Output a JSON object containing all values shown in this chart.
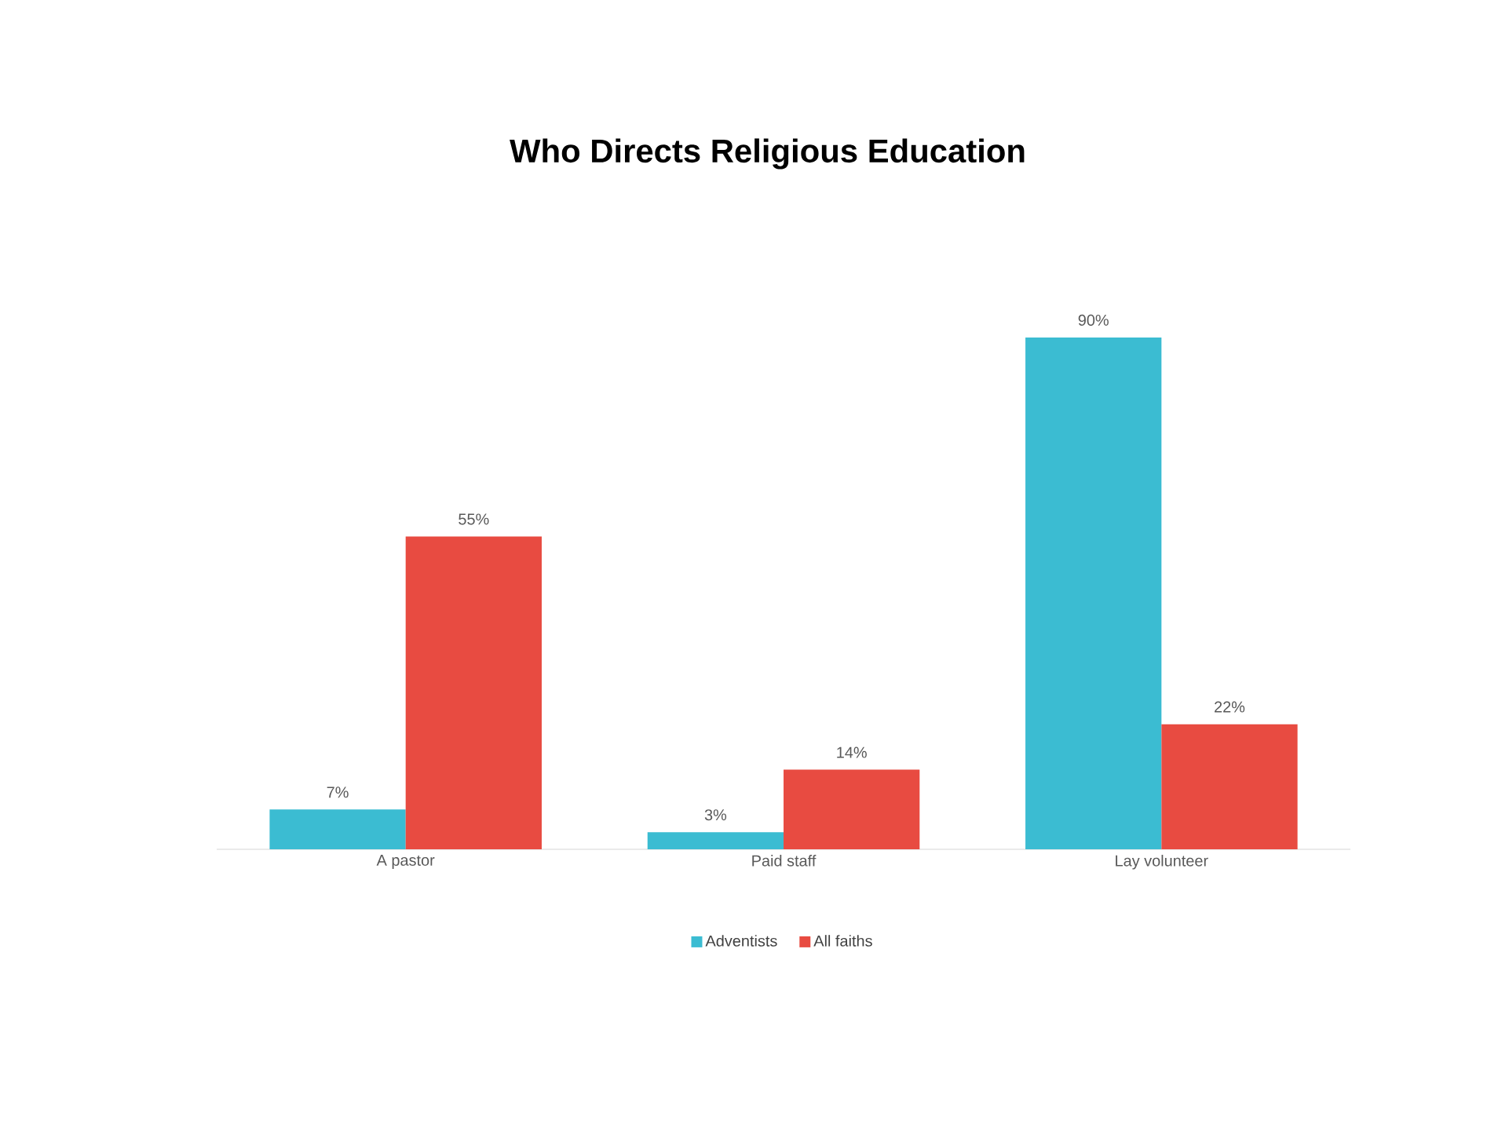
{
  "chart_data": {
    "type": "bar",
    "title": "Who Directs Religious Education",
    "categories": [
      "A pastor",
      "Paid staff",
      "Lay volunteer"
    ],
    "series": [
      {
        "name": "Adventists",
        "color": "#3bbcd2",
        "values": [
          7,
          3,
          90
        ],
        "value_labels": [
          "7%",
          "3%",
          "90%"
        ]
      },
      {
        "name": "All faiths",
        "color": "#e84b41",
        "values": [
          55,
          14,
          22
        ],
        "value_labels": [
          "55%",
          "14%",
          "22%"
        ]
      }
    ],
    "legend": "bottom"
  }
}
